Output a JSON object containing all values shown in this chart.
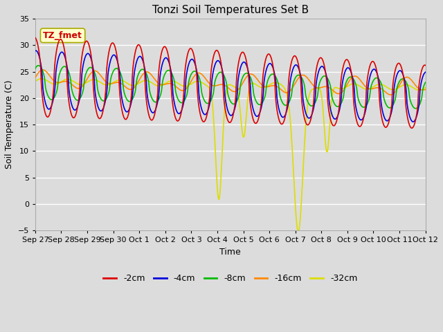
{
  "title": "Tonzi Soil Temperatures Set B",
  "xlabel": "Time",
  "ylabel": "Soil Temperature (C)",
  "ylim": [
    -5,
    35
  ],
  "yticks": [
    -5,
    0,
    5,
    10,
    15,
    20,
    25,
    30,
    35
  ],
  "fig_bg": "#dcdcdc",
  "plot_bg": "#dcdcdc",
  "grid_color": "white",
  "annotation_text": "TZ_fmet",
  "annotation_bg": "#ffffcc",
  "annotation_fg": "#cc0000",
  "annotation_edge": "#aaaa00",
  "series_colors": {
    "-2cm": "#dd0000",
    "-4cm": "#0000dd",
    "-8cm": "#00bb00",
    "-16cm": "#ff8800",
    "-32cm": "#dddd00"
  },
  "legend_labels": [
    "-2cm",
    "-4cm",
    "-8cm",
    "-16cm",
    "-32cm"
  ],
  "x_tick_labels": [
    "Sep 27",
    "Sep 28",
    "Sep 29",
    "Sep 30",
    "Oct 1",
    "Oct 2",
    "Oct 3",
    "Oct 4",
    "Oct 5",
    "Oct 6",
    "Oct 7",
    "Oct 8",
    "Oct 9",
    "Oct 10",
    "Oct 11",
    "Oct 12"
  ]
}
